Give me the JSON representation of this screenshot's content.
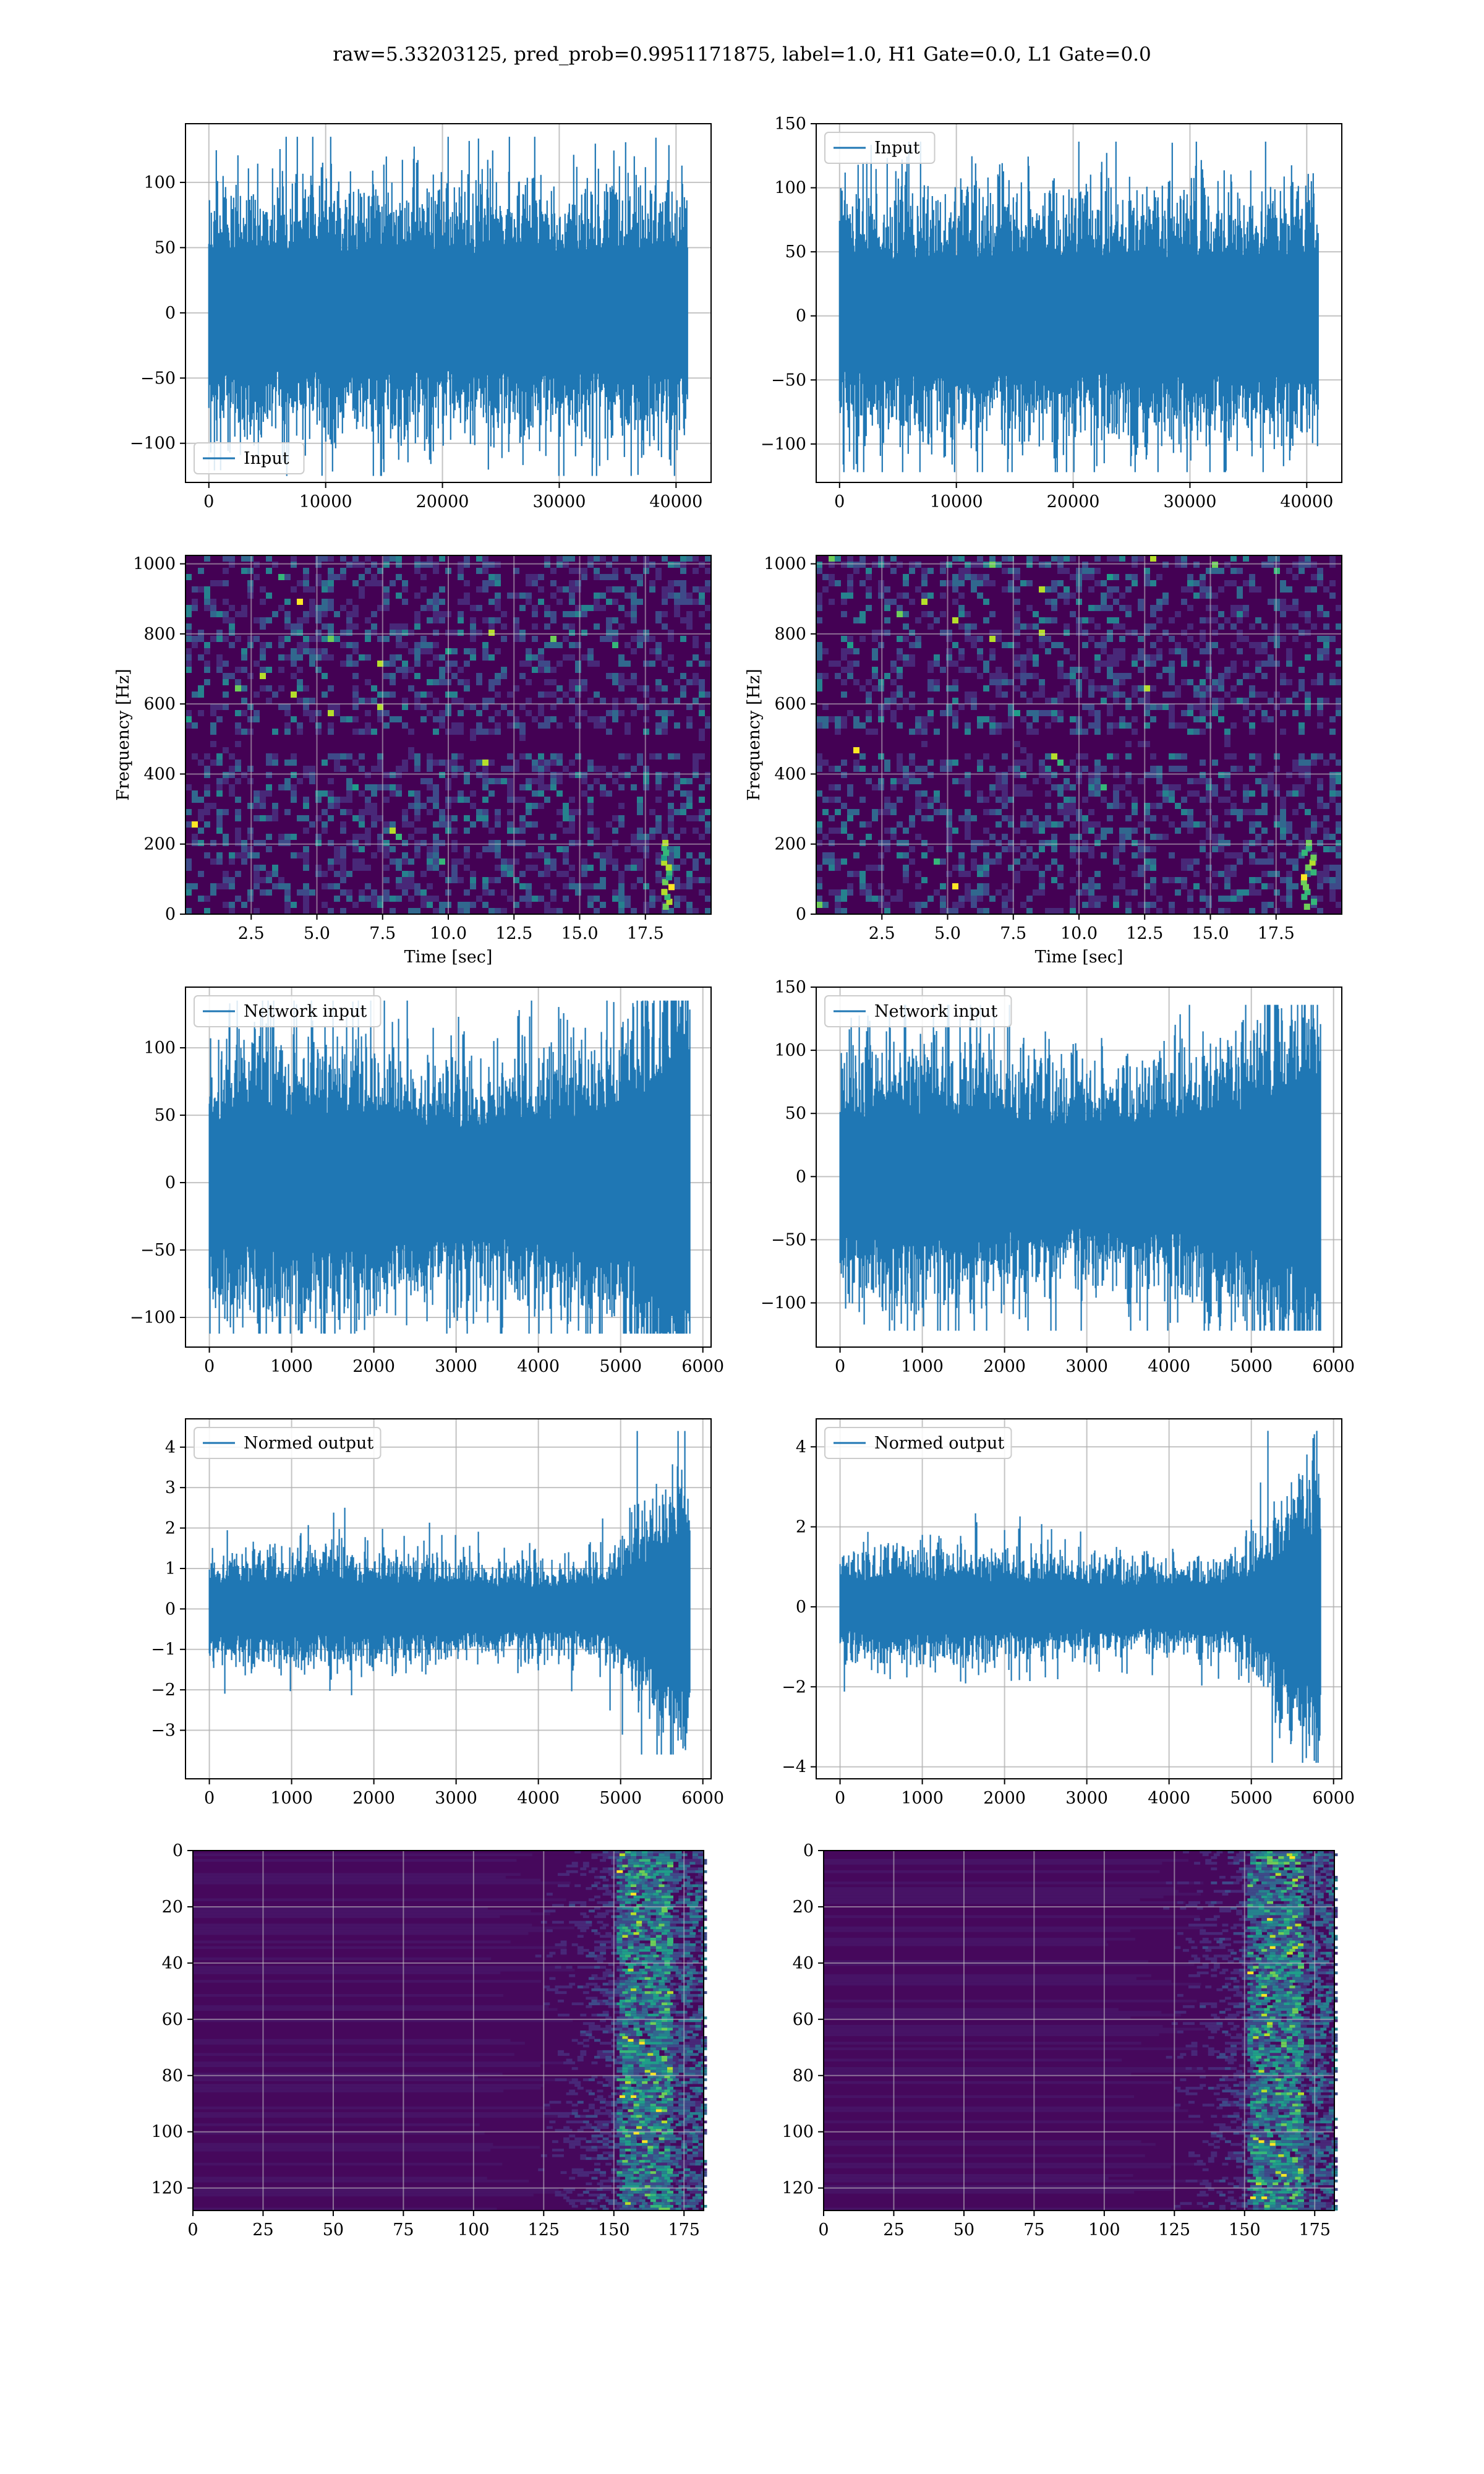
{
  "title": "raw=5.33203125, pred_prob=0.9951171875, label=1.0, H1 Gate=0.0, L1 Gate=0.0",
  "colors": {
    "line": "#1f77b4",
    "grid": "#b0b0b0",
    "viridis": [
      "#440154",
      "#482878",
      "#3e4a89",
      "#31688e",
      "#26828e",
      "#1f9e89",
      "#35b779",
      "#6ece58",
      "#b5de2b",
      "#fde725"
    ]
  },
  "chart_data": [
    {
      "id": "h1-input",
      "type": "line",
      "series": [
        {
          "name": "Input",
          "n_samples": 40960,
          "mean": 0,
          "std": 30,
          "min": -125,
          "max": 135
        }
      ],
      "legend": "lower-left",
      "xlim": [
        -2000,
        43000
      ],
      "ylim": [
        -130,
        145
      ],
      "xticks": [
        0,
        10000,
        20000,
        30000,
        40000
      ],
      "yticks": [
        -100,
        -50,
        0,
        50,
        100
      ],
      "xlabel": "",
      "ylabel": "",
      "grid": true
    },
    {
      "id": "l1-input",
      "type": "line",
      "series": [
        {
          "name": "Input",
          "n_samples": 40960,
          "mean": 0,
          "std": 28,
          "min": -122,
          "max": 136
        }
      ],
      "legend": "upper-left",
      "xlim": [
        -2000,
        43000
      ],
      "ylim": [
        -130,
        150
      ],
      "xticks": [
        0,
        10000,
        20000,
        30000,
        40000
      ],
      "yticks": [
        -100,
        -50,
        0,
        50,
        100,
        150
      ],
      "xlabel": "",
      "ylabel": "",
      "grid": true
    },
    {
      "id": "h1-spectrogram",
      "type": "heatmap",
      "xlim": [
        0,
        20
      ],
      "ylim": [
        0,
        1024
      ],
      "xticks": [
        2.5,
        5.0,
        7.5,
        10.0,
        12.5,
        15.0,
        17.5
      ],
      "yticks": [
        0,
        200,
        400,
        600,
        800,
        1000
      ],
      "xlabel": "Time [sec]",
      "ylabel": "Frequency [Hz]",
      "grid": true,
      "dark_band_hz": 500
    },
    {
      "id": "l1-spectrogram",
      "type": "heatmap",
      "xlim": [
        0,
        20
      ],
      "ylim": [
        0,
        1024
      ],
      "xticks": [
        2.5,
        5.0,
        7.5,
        10.0,
        12.5,
        15.0,
        17.5
      ],
      "yticks": [
        0,
        200,
        400,
        600,
        800,
        1000
      ],
      "xlabel": "Time [sec]",
      "ylabel": "Frequency [Hz]",
      "grid": true,
      "dark_band_hz": 500
    },
    {
      "id": "h1-network-input",
      "type": "line",
      "series": [
        {
          "name": "Network input",
          "n_samples": 5840,
          "min": -112,
          "max": 135
        }
      ],
      "legend": "upper-left",
      "xlim": [
        -290,
        6100
      ],
      "ylim": [
        -122,
        145
      ],
      "xticks": [
        0,
        1000,
        2000,
        3000,
        4000,
        5000,
        6000
      ],
      "yticks": [
        -100,
        -50,
        0,
        50,
        100
      ],
      "xlabel": "",
      "ylabel": "",
      "grid": true
    },
    {
      "id": "l1-network-input",
      "type": "line",
      "series": [
        {
          "name": "Network input",
          "n_samples": 5840,
          "min": -122,
          "max": 136
        }
      ],
      "legend": "upper-left",
      "xlim": [
        -290,
        6100
      ],
      "ylim": [
        -135,
        150
      ],
      "xticks": [
        0,
        1000,
        2000,
        3000,
        4000,
        5000,
        6000
      ],
      "yticks": [
        -100,
        -50,
        0,
        50,
        100,
        150
      ],
      "xlabel": "",
      "ylabel": "",
      "grid": true
    },
    {
      "id": "h1-normed-output",
      "type": "line",
      "series": [
        {
          "name": "Normed output",
          "n_samples": 5840,
          "min": -3.6,
          "max": 4.4
        }
      ],
      "legend": "upper-left",
      "xlim": [
        -290,
        6100
      ],
      "ylim": [
        -4.2,
        4.7
      ],
      "xticks": [
        0,
        1000,
        2000,
        3000,
        4000,
        5000,
        6000
      ],
      "yticks": [
        -3,
        -2,
        -1,
        0,
        1,
        2,
        3,
        4
      ],
      "xlabel": "",
      "ylabel": "",
      "grid": true
    },
    {
      "id": "l1-normed-output",
      "type": "line",
      "series": [
        {
          "name": "Normed output",
          "n_samples": 5840,
          "min": -3.9,
          "max": 4.4
        }
      ],
      "legend": "upper-left",
      "xlim": [
        -290,
        6100
      ],
      "ylim": [
        -4.3,
        4.7
      ],
      "xticks": [
        0,
        1000,
        2000,
        3000,
        4000,
        5000,
        6000
      ],
      "yticks": [
        -4,
        -2,
        0,
        2,
        4
      ],
      "xlabel": "",
      "ylabel": "",
      "grid": true
    },
    {
      "id": "h1-feature-map",
      "type": "heatmap",
      "xlim": [
        0,
        182
      ],
      "ylim": [
        128,
        0
      ],
      "xticks": [
        0,
        25,
        50,
        75,
        100,
        125,
        150,
        175
      ],
      "yticks": [
        0,
        20,
        40,
        60,
        80,
        100,
        120
      ],
      "xlabel": "",
      "ylabel": "",
      "grid": true
    },
    {
      "id": "l1-feature-map",
      "type": "heatmap",
      "xlim": [
        0,
        182
      ],
      "ylim": [
        128,
        0
      ],
      "xticks": [
        0,
        25,
        50,
        75,
        100,
        125,
        150,
        175
      ],
      "yticks": [
        0,
        20,
        40,
        60,
        80,
        100,
        120
      ],
      "xlabel": "",
      "ylabel": "",
      "grid": true
    }
  ]
}
